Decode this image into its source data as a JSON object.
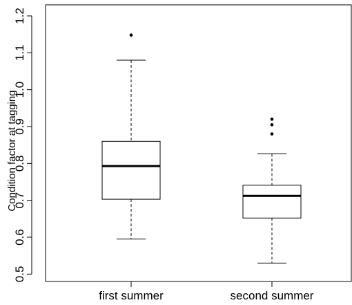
{
  "chart_data": {
    "type": "boxplot",
    "title": "",
    "xlabel": "",
    "ylabel": "Condition factor at tagging",
    "ylim": [
      0.48,
      1.23
    ],
    "yticks": [
      0.5,
      0.6,
      0.7,
      0.8,
      0.9,
      1.0,
      1.1,
      1.2
    ],
    "ytick_labels": [
      "0.5",
      "0.6",
      "0.7",
      "0.8",
      "0.9",
      "1.0",
      "1.1",
      "1.2"
    ],
    "categories": [
      "first summer",
      "second summer"
    ],
    "boxes": [
      {
        "label": "first summer",
        "whisker_low": 0.595,
        "q1": 0.703,
        "median": 0.793,
        "q3": 0.86,
        "whisker_high": 1.08,
        "outliers": [
          1.148
        ]
      },
      {
        "label": "second summer",
        "whisker_low": 0.53,
        "q1": 0.652,
        "median": 0.712,
        "q3": 0.741,
        "whisker_high": 0.826,
        "outliers": [
          0.88,
          0.905,
          0.92
        ]
      }
    ],
    "grid": false,
    "legend": "none",
    "colors": {
      "box_fill": "#ffffff",
      "stroke": "#000000",
      "median": "#000000"
    }
  }
}
